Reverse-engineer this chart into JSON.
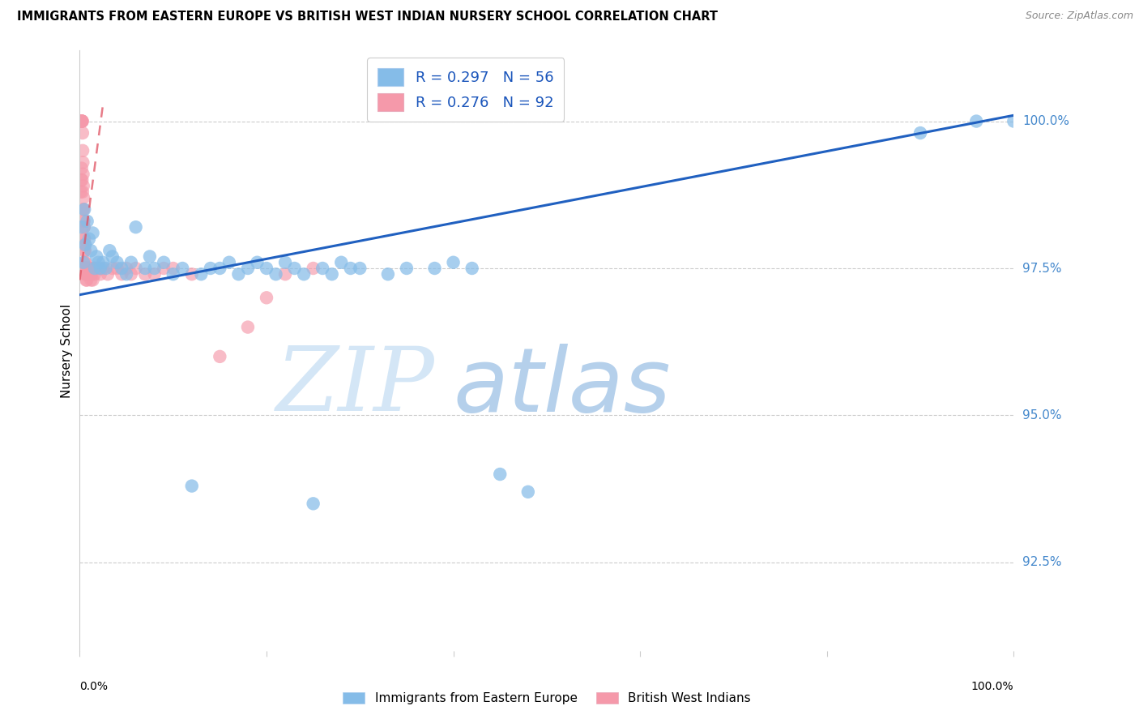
{
  "title": "IMMIGRANTS FROM EASTERN EUROPE VS BRITISH WEST INDIAN NURSERY SCHOOL CORRELATION CHART",
  "source": "Source: ZipAtlas.com",
  "ylabel": "Nursery School",
  "yticks": [
    92.5,
    95.0,
    97.5,
    100.0
  ],
  "ytick_labels": [
    "92.5%",
    "95.0%",
    "97.5%",
    "100.0%"
  ],
  "xlim": [
    0,
    100
  ],
  "ylim": [
    91.0,
    101.2
  ],
  "legend_blue_r": "R = 0.297",
  "legend_blue_n": "N = 56",
  "legend_pink_r": "R = 0.276",
  "legend_pink_n": "N = 92",
  "blue_color": "#85bce8",
  "pink_color": "#f599aa",
  "trend_blue_color": "#2060c0",
  "trend_pink_color": "#e05060",
  "legend_blue_label": "Immigrants from Eastern Europe",
  "legend_pink_label": "British West Indians",
  "blue_trend_x0": 0,
  "blue_trend_y0": 97.05,
  "blue_trend_x1": 100,
  "blue_trend_y1": 100.1,
  "pink_trend_x0": 0,
  "pink_trend_y0": 97.3,
  "pink_trend_x1": 2.5,
  "pink_trend_y1": 100.3,
  "blue_scatter_x": [
    0.2,
    0.4,
    0.5,
    0.6,
    0.8,
    1.0,
    1.2,
    1.4,
    1.6,
    1.8,
    2.0,
    2.2,
    2.5,
    2.8,
    3.2,
    3.5,
    4.0,
    4.5,
    5.0,
    5.5,
    6.0,
    7.0,
    7.5,
    8.0,
    9.0,
    10.0,
    11.0,
    12.0,
    13.0,
    14.0,
    15.0,
    16.0,
    17.0,
    18.0,
    19.0,
    20.0,
    21.0,
    22.0,
    23.0,
    24.0,
    25.0,
    26.0,
    27.0,
    28.0,
    29.0,
    30.0,
    33.0,
    35.0,
    38.0,
    40.0,
    42.0,
    45.0,
    48.0,
    90.0,
    96.0,
    100.0
  ],
  "blue_scatter_y": [
    98.2,
    97.6,
    98.5,
    97.9,
    98.3,
    98.0,
    97.8,
    98.1,
    97.5,
    97.7,
    97.6,
    97.5,
    97.6,
    97.5,
    97.8,
    97.7,
    97.6,
    97.5,
    97.4,
    97.6,
    98.2,
    97.5,
    97.7,
    97.5,
    97.6,
    97.4,
    97.5,
    93.8,
    97.4,
    97.5,
    97.5,
    97.6,
    97.4,
    97.5,
    97.6,
    97.5,
    97.4,
    97.6,
    97.5,
    97.4,
    93.5,
    97.5,
    97.4,
    97.6,
    97.5,
    97.5,
    97.4,
    97.5,
    97.5,
    97.6,
    97.5,
    94.0,
    93.7,
    99.8,
    100.0,
    100.0
  ],
  "pink_scatter_x": [
    0.02,
    0.04,
    0.06,
    0.08,
    0.1,
    0.12,
    0.14,
    0.16,
    0.18,
    0.2,
    0.22,
    0.24,
    0.26,
    0.28,
    0.3,
    0.32,
    0.34,
    0.36,
    0.38,
    0.4,
    0.42,
    0.44,
    0.46,
    0.48,
    0.5,
    0.52,
    0.54,
    0.56,
    0.58,
    0.6,
    0.62,
    0.64,
    0.66,
    0.68,
    0.7,
    0.72,
    0.74,
    0.76,
    0.78,
    0.8,
    0.85,
    0.9,
    0.95,
    1.0,
    1.1,
    1.2,
    1.3,
    1.4,
    1.5,
    1.6,
    1.8,
    2.0,
    2.2,
    2.5,
    3.0,
    3.5,
    4.0,
    4.5,
    5.0,
    5.5,
    6.0,
    7.0,
    8.0,
    9.0,
    10.0,
    12.0,
    15.0,
    18.0,
    20.0,
    22.0,
    25.0,
    0.1,
    0.15,
    0.2,
    0.25,
    0.3,
    0.35,
    0.4,
    0.45,
    0.5,
    0.55,
    0.6,
    0.65,
    0.7,
    0.75,
    0.8,
    0.85,
    0.9,
    0.95,
    1.0,
    1.1,
    1.2
  ],
  "pink_scatter_y": [
    100.0,
    100.0,
    100.0,
    100.0,
    100.0,
    100.0,
    100.0,
    100.0,
    100.0,
    100.0,
    100.0,
    100.0,
    100.0,
    100.0,
    99.8,
    99.5,
    99.3,
    99.1,
    98.9,
    98.7,
    98.5,
    98.3,
    98.2,
    98.0,
    97.9,
    97.8,
    97.6,
    97.5,
    97.5,
    97.4,
    97.5,
    97.4,
    97.5,
    97.3,
    97.5,
    97.4,
    97.5,
    97.3,
    97.4,
    97.5,
    97.4,
    97.5,
    97.4,
    97.5,
    97.4,
    97.5,
    97.4,
    97.3,
    97.5,
    97.4,
    97.5,
    97.5,
    97.4,
    97.5,
    97.4,
    97.5,
    97.5,
    97.4,
    97.5,
    97.4,
    97.5,
    97.4,
    97.4,
    97.5,
    97.5,
    97.4,
    96.0,
    96.5,
    97.0,
    97.4,
    97.5,
    98.8,
    99.0,
    99.2,
    99.0,
    98.8,
    98.5,
    98.3,
    98.2,
    98.0,
    97.8,
    97.6,
    97.5,
    97.5,
    97.4,
    97.5,
    97.4,
    97.5,
    97.4,
    97.5,
    97.4,
    97.3
  ]
}
